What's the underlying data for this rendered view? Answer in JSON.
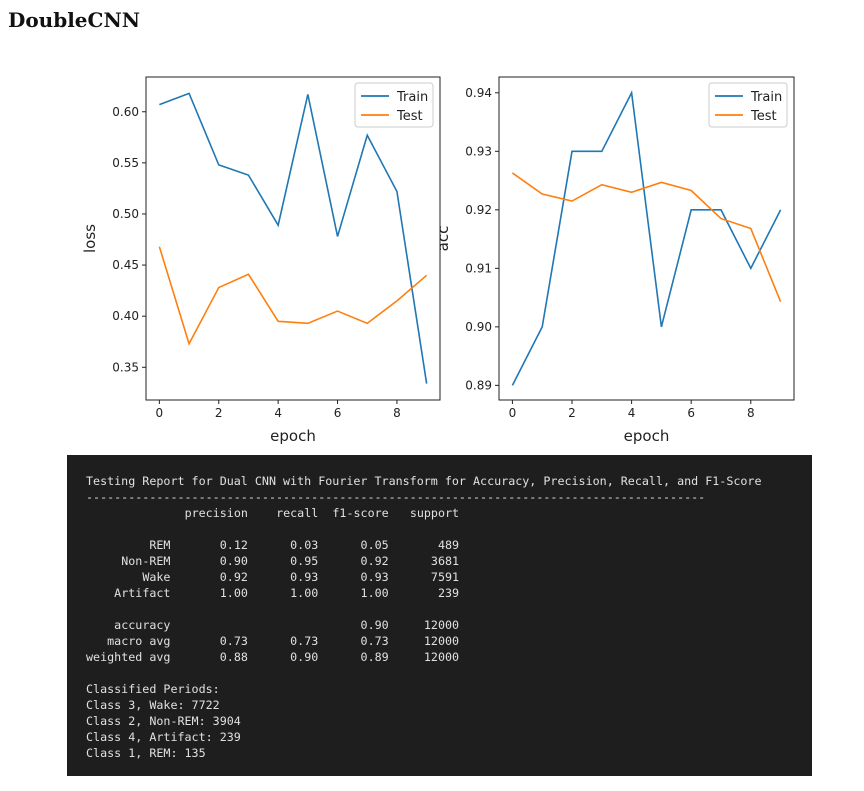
{
  "title": "DoubleCNN",
  "chart_data": [
    {
      "type": "line",
      "xlabel": "epoch",
      "ylabel": "loss",
      "x": [
        0,
        1,
        2,
        3,
        4,
        5,
        6,
        7,
        8,
        9
      ],
      "xticks": [
        "0",
        "2",
        "4",
        "6",
        "8"
      ],
      "yticks": [
        "0.35",
        "0.40",
        "0.45",
        "0.50",
        "0.55",
        "0.60"
      ],
      "xlim": [
        -0.45,
        9.45
      ],
      "ylim": [
        0.318,
        0.634
      ],
      "legend": "top-right",
      "series": [
        {
          "name": "Train",
          "color": "#1f77b4",
          "values": [
            0.607,
            0.618,
            0.548,
            0.538,
            0.489,
            0.617,
            0.478,
            0.577,
            0.522,
            0.334
          ]
        },
        {
          "name": "Test",
          "color": "#ff7f0e",
          "values": [
            0.468,
            0.373,
            0.428,
            0.441,
            0.395,
            0.393,
            0.405,
            0.393,
            0.415,
            0.44
          ]
        }
      ]
    },
    {
      "type": "line",
      "xlabel": "epoch",
      "ylabel": "acc",
      "x": [
        0,
        1,
        2,
        3,
        4,
        5,
        6,
        7,
        8,
        9
      ],
      "xticks": [
        "0",
        "2",
        "4",
        "6",
        "8"
      ],
      "yticks": [
        "0.89",
        "0.90",
        "0.91",
        "0.92",
        "0.93",
        "0.94"
      ],
      "xlim": [
        -0.45,
        9.45
      ],
      "ylim": [
        0.8875,
        0.9427
      ],
      "legend": "top-right",
      "series": [
        {
          "name": "Train",
          "color": "#1f77b4",
          "values": [
            0.89,
            0.9,
            0.93,
            0.93,
            0.94,
            0.9,
            0.92,
            0.92,
            0.91,
            0.92
          ]
        },
        {
          "name": "Test",
          "color": "#ff7f0e",
          "values": [
            0.9263,
            0.9227,
            0.9215,
            0.9243,
            0.923,
            0.9247,
            0.9233,
            0.9185,
            0.9168,
            0.9043
          ]
        }
      ]
    }
  ],
  "report": {
    "heading": "Testing Report for Dual CNN with Fourier Transform for Accuracy, Precision, Recall, and F1-Score",
    "separator": "----------------------------------------------------------------------------------------",
    "columns": [
      "precision",
      "recall",
      "f1-score",
      "support"
    ],
    "rows": [
      [
        "REM",
        "0.12",
        "0.03",
        "0.05",
        "489"
      ],
      [
        "Non-REM",
        "0.90",
        "0.95",
        "0.92",
        "3681"
      ],
      [
        "Wake",
        "0.92",
        "0.93",
        "0.93",
        "7591"
      ],
      [
        "Artifact",
        "1.00",
        "1.00",
        "1.00",
        "239"
      ]
    ],
    "summary": [
      [
        "accuracy",
        "",
        "",
        "0.90",
        "12000"
      ],
      [
        "macro avg",
        "0.73",
        "0.73",
        "0.73",
        "12000"
      ],
      [
        "weighted avg",
        "0.88",
        "0.90",
        "0.89",
        "12000"
      ]
    ],
    "periods_heading": "Classified Periods:",
    "periods": [
      "Class 3, Wake: 7722",
      "Class 2, Non-REM: 3904",
      "Class 4, Artifact: 239",
      "Class 1, REM: 135"
    ]
  }
}
